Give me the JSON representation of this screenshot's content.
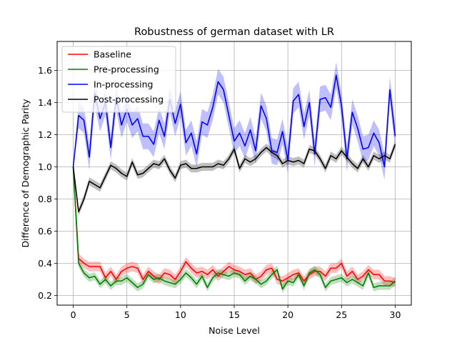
{
  "chart_data": {
    "type": "line",
    "title": "Robustness of german dataset with LR",
    "xlabel": "Noise Level",
    "ylabel": "Difference of Demographic Parity",
    "xlim": [
      -1.5,
      31.5
    ],
    "ylim": [
      0.14,
      1.78
    ],
    "xticks": [
      0,
      5,
      10,
      15,
      20,
      25,
      30
    ],
    "yticks": [
      0.2,
      0.4,
      0.6,
      0.8,
      1.0,
      1.2,
      1.4,
      1.6
    ],
    "ytick_labels": [
      "0.2",
      "0.4",
      "0.6",
      "0.8",
      "1.0",
      "1.2",
      "1.4",
      "1.6"
    ],
    "grid": true,
    "legend_position": "top-left",
    "x": [
      0,
      0.5,
      1,
      1.5,
      2,
      2.5,
      3,
      3.5,
      4,
      4.5,
      5,
      5.5,
      6,
      6.5,
      7,
      7.5,
      8,
      8.5,
      9,
      9.5,
      10,
      10.5,
      11,
      11.5,
      12,
      12.5,
      13,
      13.5,
      14,
      14.5,
      15,
      15.5,
      16,
      16.5,
      17,
      17.5,
      18,
      18.5,
      19,
      19.5,
      20,
      20.5,
      21,
      21.5,
      22,
      22.5,
      23,
      23.5,
      24,
      24.5,
      25,
      25.5,
      26,
      26.5,
      27,
      27.5,
      28,
      28.5,
      29,
      29.5,
      30
    ],
    "series": [
      {
        "name": "Baseline",
        "color": "#ff0000",
        "band_width": 0.03,
        "values": [
          1.0,
          0.43,
          0.4,
          0.38,
          0.38,
          0.38,
          0.31,
          0.35,
          0.3,
          0.35,
          0.37,
          0.38,
          0.37,
          0.3,
          0.35,
          0.32,
          0.3,
          0.34,
          0.33,
          0.3,
          0.35,
          0.41,
          0.37,
          0.34,
          0.35,
          0.33,
          0.36,
          0.32,
          0.35,
          0.38,
          0.36,
          0.35,
          0.33,
          0.34,
          0.3,
          0.32,
          0.36,
          0.37,
          0.3,
          0.29,
          0.31,
          0.33,
          0.34,
          0.29,
          0.33,
          0.35,
          0.35,
          0.32,
          0.37,
          0.37,
          0.4,
          0.32,
          0.35,
          0.3,
          0.32,
          0.36,
          0.33,
          0.33,
          0.29,
          0.29,
          0.28
        ]
      },
      {
        "name": "Pre-processing",
        "color": "#008000",
        "band_width": 0.025,
        "values": [
          1.0,
          0.4,
          0.34,
          0.31,
          0.32,
          0.27,
          0.3,
          0.26,
          0.29,
          0.29,
          0.31,
          0.28,
          0.25,
          0.27,
          0.33,
          0.3,
          0.31,
          0.29,
          0.28,
          0.27,
          0.3,
          0.34,
          0.31,
          0.27,
          0.32,
          0.25,
          0.31,
          0.34,
          0.33,
          0.32,
          0.34,
          0.33,
          0.29,
          0.32,
          0.3,
          0.27,
          0.29,
          0.33,
          0.36,
          0.24,
          0.29,
          0.28,
          0.33,
          0.26,
          0.34,
          0.36,
          0.33,
          0.25,
          0.29,
          0.3,
          0.31,
          0.28,
          0.3,
          0.28,
          0.26,
          0.34,
          0.25,
          0.26,
          0.26,
          0.26,
          0.29
        ]
      },
      {
        "name": "In-processing",
        "color": "#0000ff",
        "band_width": 0.08,
        "values": [
          1.0,
          1.32,
          1.29,
          1.06,
          1.46,
          1.3,
          1.4,
          1.12,
          1.43,
          1.26,
          1.36,
          1.26,
          1.3,
          1.19,
          1.19,
          1.14,
          1.29,
          1.19,
          1.42,
          1.27,
          1.39,
          1.15,
          1.21,
          1.08,
          1.28,
          1.26,
          1.37,
          1.53,
          1.48,
          1.32,
          1.16,
          1.21,
          1.13,
          1.23,
          1.1,
          1.38,
          1.3,
          1.1,
          1.09,
          1.22,
          1.04,
          1.41,
          1.45,
          1.25,
          1.4,
          1.08,
          1.42,
          1.43,
          1.37,
          1.57,
          1.38,
          1.05,
          1.34,
          1.24,
          1.11,
          1.12,
          1.21,
          1.15,
          1.0,
          1.48,
          1.19
        ]
      },
      {
        "name": "Post-processing",
        "color": "#000000",
        "band_width": 0.025,
        "values": [
          1.0,
          0.72,
          0.8,
          0.91,
          0.89,
          0.87,
          0.94,
          1.01,
          0.99,
          0.96,
          0.94,
          1.03,
          0.95,
          0.96,
          0.99,
          1.02,
          1.01,
          1.05,
          0.98,
          0.93,
          1.01,
          1.02,
          0.99,
          0.99,
          1.0,
          1.0,
          1.0,
          1.02,
          1.01,
          1.05,
          1.11,
          0.99,
          1.05,
          1.03,
          1.05,
          1.09,
          1.12,
          1.09,
          1.07,
          1.02,
          1.04,
          1.03,
          1.04,
          1.02,
          1.11,
          1.1,
          1.05,
          0.99,
          1.07,
          1.05,
          1.1,
          1.06,
          1.02,
          0.99,
          1.05,
          1.0,
          1.07,
          1.05,
          1.07,
          1.05,
          1.14
        ]
      }
    ]
  }
}
